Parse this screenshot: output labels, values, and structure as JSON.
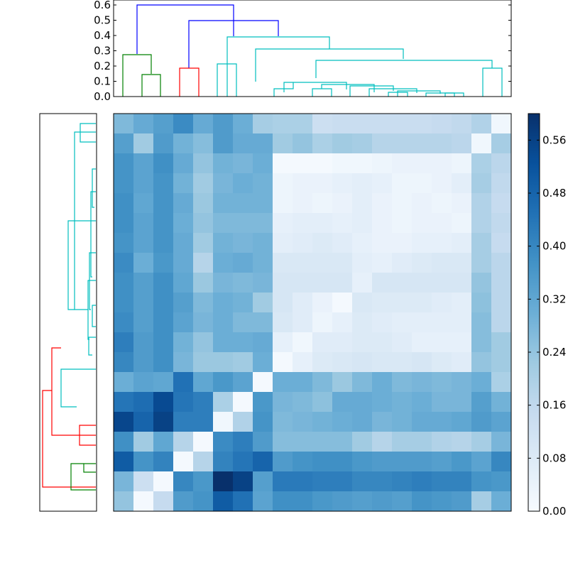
{
  "chart_data": [
    {
      "type": "heatmap",
      "title": "",
      "xlabel": "",
      "ylabel": "",
      "rows": 20,
      "cols": 20,
      "value_range": [
        0.0,
        0.6
      ],
      "colormap": "Blues",
      "values": [
        [
          0.27,
          0.31,
          0.34,
          0.39,
          0.31,
          0.35,
          0.3,
          0.21,
          0.2,
          0.2,
          0.13,
          0.14,
          0.14,
          0.14,
          0.14,
          0.14,
          0.15,
          0.16,
          0.19,
          0.02
        ],
        [
          0.34,
          0.22,
          0.35,
          0.29,
          0.26,
          0.35,
          0.31,
          0.31,
          0.22,
          0.24,
          0.2,
          0.22,
          0.21,
          0.18,
          0.18,
          0.18,
          0.18,
          0.17,
          0.02,
          0.21
        ],
        [
          0.37,
          0.33,
          0.38,
          0.31,
          0.24,
          0.29,
          0.28,
          0.3,
          0.01,
          0.01,
          0.01,
          0.02,
          0.02,
          0.03,
          0.04,
          0.04,
          0.04,
          0.03,
          0.2,
          0.17
        ],
        [
          0.37,
          0.33,
          0.37,
          0.29,
          0.22,
          0.28,
          0.3,
          0.29,
          0.03,
          0.04,
          0.04,
          0.05,
          0.06,
          0.05,
          0.03,
          0.03,
          0.04,
          0.06,
          0.21,
          0.16
        ],
        [
          0.38,
          0.32,
          0.37,
          0.31,
          0.23,
          0.29,
          0.29,
          0.29,
          0.03,
          0.04,
          0.03,
          0.04,
          0.06,
          0.04,
          0.03,
          0.04,
          0.03,
          0.04,
          0.19,
          0.15
        ],
        [
          0.38,
          0.33,
          0.37,
          0.3,
          0.24,
          0.27,
          0.27,
          0.27,
          0.05,
          0.06,
          0.06,
          0.05,
          0.06,
          0.04,
          0.03,
          0.04,
          0.04,
          0.03,
          0.19,
          0.16
        ],
        [
          0.37,
          0.33,
          0.37,
          0.31,
          0.22,
          0.29,
          0.28,
          0.29,
          0.06,
          0.07,
          0.08,
          0.07,
          0.05,
          0.04,
          0.04,
          0.05,
          0.05,
          0.06,
          0.21,
          0.15
        ],
        [
          0.39,
          0.3,
          0.36,
          0.31,
          0.18,
          0.3,
          0.31,
          0.29,
          0.09,
          0.09,
          0.09,
          0.09,
          0.06,
          0.05,
          0.07,
          0.08,
          0.09,
          0.09,
          0.21,
          0.17
        ],
        [
          0.38,
          0.34,
          0.38,
          0.32,
          0.23,
          0.28,
          0.27,
          0.28,
          0.1,
          0.1,
          0.1,
          0.1,
          0.05,
          0.1,
          0.1,
          0.1,
          0.1,
          0.1,
          0.24,
          0.17
        ],
        [
          0.38,
          0.34,
          0.38,
          0.34,
          0.27,
          0.3,
          0.29,
          0.22,
          0.1,
          0.07,
          0.04,
          0.01,
          0.09,
          0.08,
          0.08,
          0.08,
          0.07,
          0.06,
          0.25,
          0.17
        ],
        [
          0.39,
          0.34,
          0.38,
          0.33,
          0.28,
          0.3,
          0.27,
          0.27,
          0.09,
          0.07,
          0.03,
          0.05,
          0.08,
          0.07,
          0.06,
          0.06,
          0.06,
          0.06,
          0.26,
          0.17
        ],
        [
          0.42,
          0.35,
          0.38,
          0.29,
          0.24,
          0.3,
          0.3,
          0.31,
          0.05,
          0.02,
          0.07,
          0.07,
          0.08,
          0.08,
          0.07,
          0.05,
          0.05,
          0.05,
          0.26,
          0.22
        ],
        [
          0.4,
          0.35,
          0.38,
          0.28,
          0.23,
          0.23,
          0.22,
          0.3,
          0.01,
          0.05,
          0.08,
          0.09,
          0.1,
          0.09,
          0.09,
          0.1,
          0.08,
          0.07,
          0.24,
          0.22
        ],
        [
          0.3,
          0.33,
          0.32,
          0.45,
          0.32,
          0.36,
          0.33,
          0.01,
          0.3,
          0.3,
          0.27,
          0.23,
          0.27,
          0.3,
          0.27,
          0.28,
          0.27,
          0.28,
          0.3,
          0.2
        ],
        [
          0.44,
          0.46,
          0.54,
          0.44,
          0.42,
          0.2,
          0.01,
          0.36,
          0.28,
          0.27,
          0.25,
          0.31,
          0.31,
          0.3,
          0.29,
          0.3,
          0.28,
          0.28,
          0.34,
          0.29
        ],
        [
          0.55,
          0.48,
          0.56,
          0.42,
          0.42,
          0.02,
          0.19,
          0.37,
          0.27,
          0.28,
          0.29,
          0.3,
          0.31,
          0.28,
          0.29,
          0.31,
          0.31,
          0.32,
          0.35,
          0.33
        ],
        [
          0.38,
          0.22,
          0.32,
          0.18,
          0.01,
          0.39,
          0.42,
          0.35,
          0.26,
          0.26,
          0.26,
          0.26,
          0.22,
          0.18,
          0.21,
          0.21,
          0.19,
          0.18,
          0.21,
          0.28
        ],
        [
          0.5,
          0.37,
          0.41,
          0.01,
          0.18,
          0.41,
          0.44,
          0.48,
          0.35,
          0.37,
          0.38,
          0.38,
          0.36,
          0.35,
          0.35,
          0.35,
          0.34,
          0.36,
          0.33,
          0.4
        ],
        [
          0.28,
          0.13,
          0.01,
          0.4,
          0.36,
          0.6,
          0.56,
          0.34,
          0.43,
          0.43,
          0.42,
          0.42,
          0.4,
          0.4,
          0.41,
          0.42,
          0.41,
          0.41,
          0.37,
          0.36
        ],
        [
          0.24,
          0.01,
          0.15,
          0.35,
          0.37,
          0.5,
          0.45,
          0.33,
          0.38,
          0.38,
          0.36,
          0.35,
          0.34,
          0.35,
          0.34,
          0.37,
          0.36,
          0.35,
          0.21,
          0.3
        ]
      ]
    },
    {
      "type": "dendrogram",
      "orientation": "top",
      "ylim": [
        0.0,
        0.6
      ],
      "yticks": [
        "0.0",
        "0.1",
        "0.2",
        "0.3",
        "0.4",
        "0.5",
        "0.6"
      ],
      "link_colors": [
        "#0000ff",
        "#008000",
        "#ff0000",
        "#00bfbf"
      ]
    },
    {
      "type": "dendrogram",
      "orientation": "left"
    },
    {
      "type": "colorbar",
      "range": [
        0.0,
        0.6
      ],
      "ticks": [
        "0.00",
        "0.08",
        "0.16",
        "0.24",
        "0.32",
        "0.40",
        "0.48",
        "0.56"
      ]
    }
  ]
}
